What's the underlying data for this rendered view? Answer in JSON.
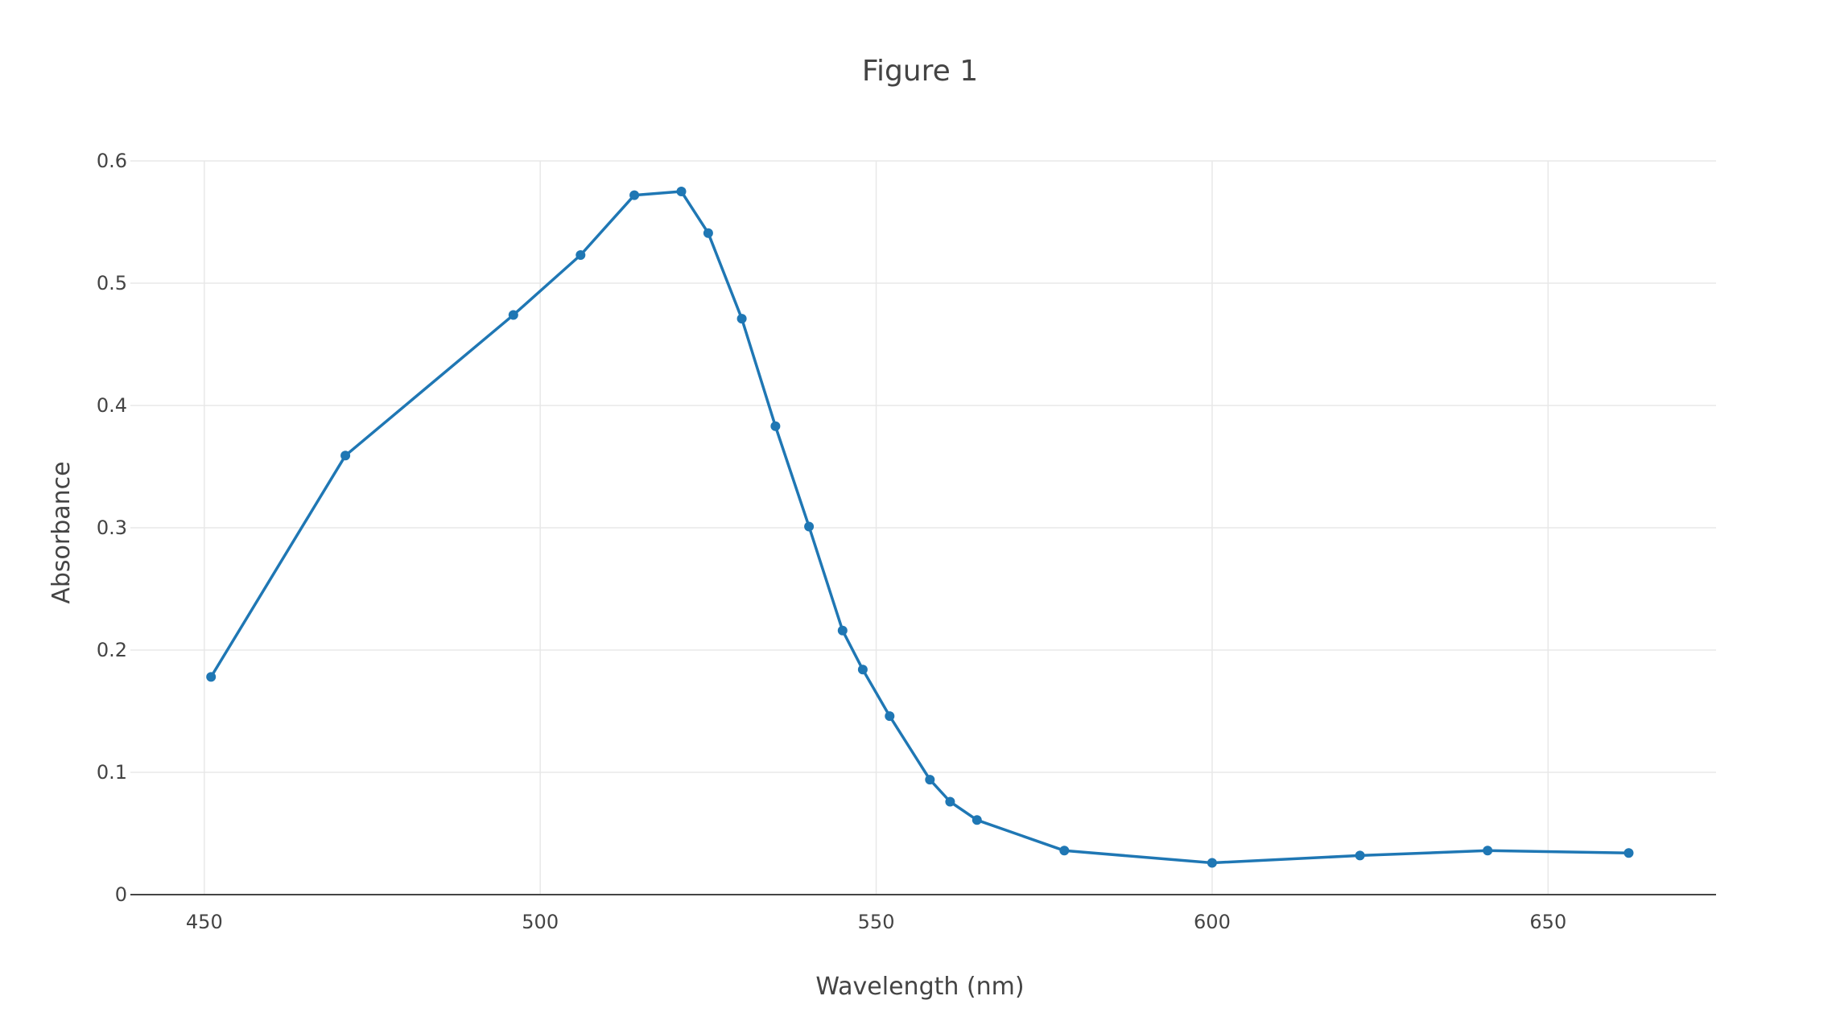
{
  "chart_data": {
    "type": "line",
    "title": "Figure 1",
    "xlabel": "Wavelength (nm)",
    "ylabel": "Absorbance",
    "xlim": [
      439,
      675
    ],
    "ylim": [
      0,
      0.6
    ],
    "x_ticks": [
      450,
      500,
      550,
      600,
      650
    ],
    "x_tick_labels": [
      "450",
      "500",
      "550",
      "600",
      "650"
    ],
    "y_ticks": [
      0,
      0.1,
      0.2,
      0.3,
      0.4,
      0.5,
      0.6
    ],
    "y_tick_labels": [
      "0",
      "0.1",
      "0.2",
      "0.3",
      "0.4",
      "0.5",
      "0.6"
    ],
    "grid": true,
    "legend": false,
    "series": [
      {
        "color": "#1f77b4",
        "x": [
          451,
          471,
          496,
          506,
          514,
          521,
          525,
          530,
          535,
          540,
          545,
          548,
          552,
          558,
          561,
          565,
          578,
          600,
          622,
          641,
          662
        ],
        "y": [
          0.178,
          0.359,
          0.474,
          0.523,
          0.572,
          0.575,
          0.541,
          0.471,
          0.383,
          0.301,
          0.216,
          0.184,
          0.146,
          0.094,
          0.076,
          0.061,
          0.036,
          0.026,
          0.032,
          0.036,
          0.034
        ]
      }
    ]
  }
}
